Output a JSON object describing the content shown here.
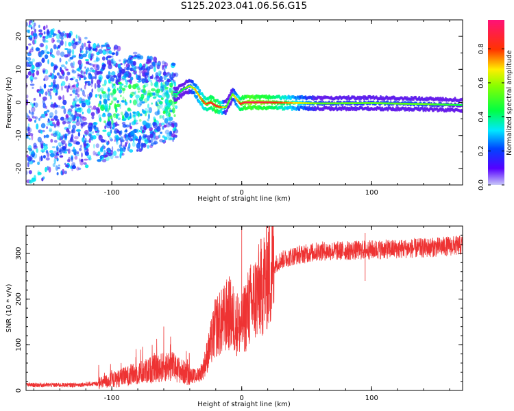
{
  "title": "S125.2023.041.06.56.G15",
  "colors": {
    "spectrum_low": "#cbb6f2",
    "spectrum_mid": "#7a1fe0",
    "snr_line": "#ee3333"
  },
  "chart_data": [
    {
      "type": "heatmap",
      "title": "S125.2023.041.06.56.G15",
      "xlabel": "Height of straight line (km)",
      "ylabel": "Frequency (Hz)",
      "xlim": [
        -166,
        170
      ],
      "ylim": [
        -25,
        25
      ],
      "xticks": [
        -100,
        0,
        100
      ],
      "yticks": [
        -20,
        -10,
        0,
        10,
        20
      ],
      "colorbar": {
        "label": "Normalized spectral amplitude",
        "range": [
          0,
          0.97
        ],
        "ticks": [
          "0.0",
          "0.2",
          "0.4",
          "0.6",
          "0.8"
        ],
        "colormap": "gist_rainbow"
      },
      "ridge": {
        "x": [
          -50,
          -45,
          -40,
          -36,
          -32,
          -28,
          -24,
          -20,
          -16,
          -12,
          -9,
          -7,
          -4,
          -1,
          2,
          6,
          20,
          60,
          100,
          140,
          170
        ],
        "freq": [
          2.5,
          4,
          5,
          4,
          1.5,
          -0.5,
          0,
          -1,
          -1.5,
          -1.5,
          1,
          2.5,
          1,
          -0.5,
          0,
          0,
          0,
          -0.3,
          -0.2,
          -0.5,
          -0.8
        ],
        "amplitude": [
          0.4,
          0.45,
          0.6,
          0.7,
          0.75,
          0.8,
          0.85,
          0.9,
          0.8,
          0.55,
          0.5,
          0.6,
          0.7,
          0.85,
          0.9,
          0.95,
          0.9,
          0.55,
          0.55,
          0.55,
          0.45
        ]
      },
      "noise_region": {
        "x_range": [
          -166,
          -50
        ],
        "freq_spread": 25,
        "amplitude": [
          0.1,
          0.35
        ]
      }
    },
    {
      "type": "line",
      "xlabel": "Height of straight line (km)",
      "ylabel": "SNR (10 * v/v)",
      "xlim": [
        -166,
        170
      ],
      "ylim": [
        0,
        360
      ],
      "xticks": [
        -100,
        0,
        100
      ],
      "yticks": [
        0,
        100,
        200,
        300
      ],
      "trend": {
        "x": [
          -166,
          -130,
          -110,
          -90,
          -70,
          -55,
          -45,
          -35,
          -30,
          -25,
          -20,
          -15,
          -10,
          -5,
          0,
          5,
          10,
          15,
          20,
          25,
          30,
          40,
          60,
          80,
          100,
          120,
          140,
          170
        ],
        "snr": [
          12,
          12,
          15,
          30,
          45,
          55,
          40,
          30,
          45,
          90,
          140,
          150,
          170,
          150,
          140,
          180,
          200,
          225,
          255,
          275,
          285,
          295,
          305,
          306,
          308,
          310,
          312,
          318
        ]
      },
      "spikes": [
        {
          "x": -60,
          "snr": 140
        },
        {
          "x": 0,
          "snr": 357
        },
        {
          "x": 95,
          "snr": 345
        },
        {
          "x": 95,
          "snr": 240
        }
      ]
    }
  ]
}
